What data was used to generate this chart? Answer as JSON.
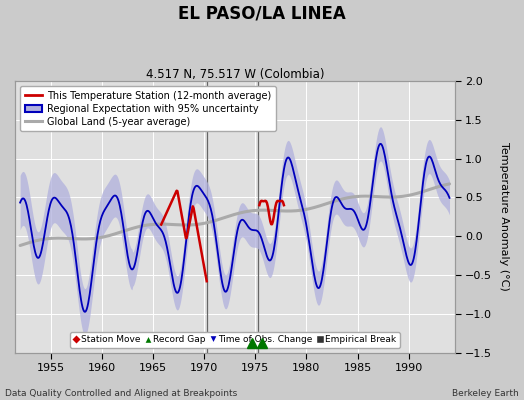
{
  "title": "EL PASO/LA LINEA",
  "subtitle": "4.517 N, 75.517 W (Colombia)",
  "ylabel": "Temperature Anomaly (°C)",
  "xlabel_left": "Data Quality Controlled and Aligned at Breakpoints",
  "xlabel_right": "Berkeley Earth",
  "ylim": [
    -1.5,
    2.0
  ],
  "xlim": [
    1951.5,
    1994.5
  ],
  "xticks": [
    1955,
    1960,
    1965,
    1970,
    1975,
    1980,
    1985,
    1990
  ],
  "yticks": [
    -1.5,
    -1.0,
    -0.5,
    0.0,
    0.5,
    1.0,
    1.5,
    2.0
  ],
  "bg_color": "#cbcbcb",
  "plot_bg_color": "#e0e0e0",
  "grid_color": "#ffffff",
  "vertical_line1": 1970.3,
  "vertical_line2": 1975.3,
  "green_triangle1": 1974.7,
  "green_triangle2": 1975.7,
  "station_line_color": "#cc0000",
  "regional_line_color": "#0000bb",
  "regional_fill_color": "#b0b0dd",
  "global_line_color": "#aaaaaa",
  "legend_items": [
    "This Temperature Station (12-month average)",
    "Regional Expectation with 95% uncertainty",
    "Global Land (5-year average)"
  ],
  "bottom_legend": [
    "Station Move",
    "Record Gap",
    "Time of Obs. Change",
    "Empirical Break"
  ]
}
